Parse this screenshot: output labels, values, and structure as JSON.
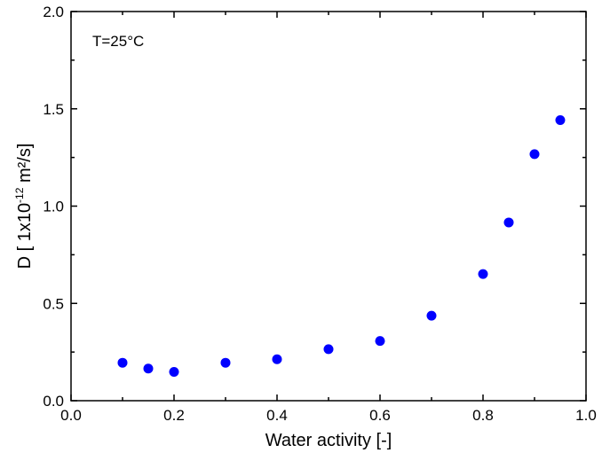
{
  "chart_data": {
    "type": "scatter",
    "annotation": "T=25°C",
    "xlabel": "Water activity [-]",
    "ylabel": {
      "prefix": "D [ 1x10",
      "exponent": "-12",
      "suffix": " m²/s]"
    },
    "xlim": [
      0.0,
      1.0
    ],
    "ylim": [
      0.0,
      2.0
    ],
    "xticks": [
      "0.0",
      "0.2",
      "0.4",
      "0.6",
      "0.8",
      "1.0"
    ],
    "yticks": [
      "0.0",
      "0.5",
      "1.0",
      "1.5",
      "2.0"
    ],
    "grid": false,
    "series": [
      {
        "marker_color": "#0000ff",
        "points": [
          {
            "x": 0.1,
            "y": 0.195
          },
          {
            "x": 0.15,
            "y": 0.165
          },
          {
            "x": 0.2,
            "y": 0.148
          },
          {
            "x": 0.3,
            "y": 0.195
          },
          {
            "x": 0.4,
            "y": 0.213
          },
          {
            "x": 0.5,
            "y": 0.265
          },
          {
            "x": 0.6,
            "y": 0.307
          },
          {
            "x": 0.7,
            "y": 0.437
          },
          {
            "x": 0.8,
            "y": 0.651
          },
          {
            "x": 0.85,
            "y": 0.916
          },
          {
            "x": 0.9,
            "y": 1.267
          },
          {
            "x": 0.95,
            "y": 1.442
          }
        ]
      }
    ]
  }
}
